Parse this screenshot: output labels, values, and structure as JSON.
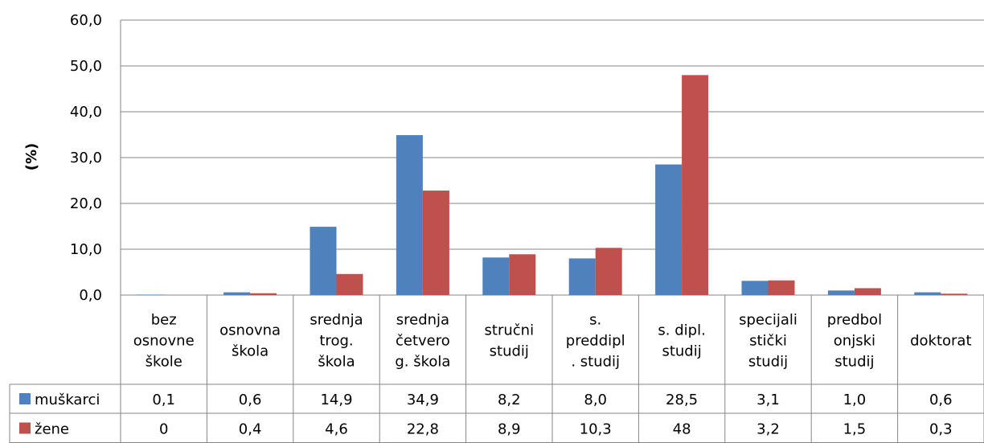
{
  "chart_data": {
    "type": "bar",
    "title": "",
    "ylabel": "(%)",
    "xlabel": "",
    "ylim": [
      0,
      60
    ],
    "yticks": [
      0,
      10,
      20,
      30,
      40,
      50,
      60
    ],
    "ytick_labels": [
      "0,0",
      "10,0",
      "20,0",
      "30,0",
      "40,0",
      "50,0",
      "60,0"
    ],
    "grid": true,
    "legend": "data-table-left",
    "categories": [
      [
        "bez",
        "osnovne",
        "škole"
      ],
      [
        "osnovna",
        "škola"
      ],
      [
        "srednja",
        "trog.",
        "škola"
      ],
      [
        "srednja",
        "četvero",
        "g. škola"
      ],
      [
        "stručni",
        "studij"
      ],
      [
        "s.",
        "preddipl",
        ". studij"
      ],
      [
        "s. dipl.",
        "studij"
      ],
      [
        "specijali",
        "stički",
        "studij"
      ],
      [
        "predbol",
        "onjski",
        "studij"
      ],
      [
        "doktorat"
      ]
    ],
    "series": [
      {
        "name": "muškarci",
        "color": "#4F81BD",
        "values": [
          0.1,
          0.6,
          14.9,
          34.9,
          8.2,
          8.0,
          28.5,
          3.1,
          1.0,
          0.6
        ],
        "labels": [
          "0,1",
          "0,6",
          "14,9",
          "34,9",
          "8,2",
          "8,0",
          "28,5",
          "3,1",
          "1,0",
          "0,6"
        ]
      },
      {
        "name": "žene",
        "color": "#C0504D",
        "values": [
          0,
          0.4,
          4.6,
          22.8,
          8.9,
          10.3,
          48,
          3.2,
          1.5,
          0.3
        ],
        "labels": [
          "0",
          "0,4",
          "4,6",
          "22,8",
          "8,9",
          "10,3",
          "48",
          "3,2",
          "1,5",
          "0,3"
        ]
      }
    ]
  }
}
